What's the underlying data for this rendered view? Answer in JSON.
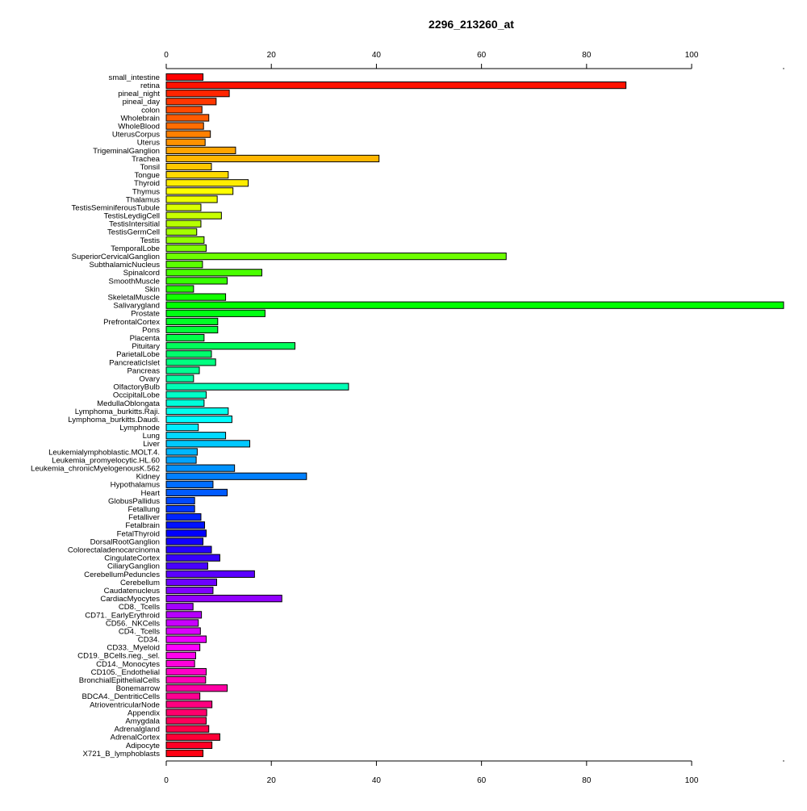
{
  "chart_data": {
    "type": "bar",
    "orientation": "horizontal",
    "title": "2296_213260_at",
    "xlabel": "",
    "ylabel": "",
    "xlim": [
      0,
      117.5
    ],
    "xticks": [
      0,
      20,
      40,
      60,
      80,
      100
    ],
    "grid": false,
    "legend": "none",
    "colormap": "rainbow",
    "categories": [
      "small_intestine",
      "retina",
      "pineal_night",
      "pineal_day",
      "colon",
      "Wholebrain",
      "WholeBlood",
      "UterusCorpus",
      "Uterus",
      "TrigeminalGanglion",
      "Trachea",
      "Tonsil",
      "Tongue",
      "Thyroid",
      "Thymus",
      "Thalamus",
      "TestisSeminiferousTubule",
      "TestisLeydigCell",
      "TestisIntersitial",
      "TestisGermCell",
      "Testis",
      "TemporalLobe",
      "SuperiorCervicalGanglion",
      "SubthalamicNucleus",
      "Spinalcord",
      "SmoothMuscle",
      "Skin",
      "SkeletalMuscle",
      "Salivarygland",
      "Prostate",
      "PrefrontalCortex",
      "Pons",
      "Placenta",
      "Pituitary",
      "ParietalLobe",
      "PancreaticIslet",
      "Pancreas",
      "Ovary",
      "OlfactoryBulb",
      "OccipitalLobe",
      "MedullaOblongata",
      "Lymphoma_burkitts.Raji.",
      "Lymphoma_burkitts.Daudi.",
      "Lymphnode",
      "Lung",
      "Liver",
      "Leukemialymphoblastic.MOLT.4.",
      "Leukemia_promyelocytic.HL.60",
      "Leukemia_chronicMyelogenousK.562",
      "Kidney",
      "Hypothalamus",
      "Heart",
      "GlobusPallidus",
      "Fetallung",
      "Fetalliver",
      "Fetalbrain",
      "FetalThyroid",
      "DorsalRootGanglion",
      "Colorectaladenocarcinoma",
      "CingulateCortex",
      "CiliaryGanglion",
      "CerebellumPeduncles",
      "Cerebellum",
      "Caudatenucleus",
      "CardiacMyocytes",
      "CD8._Tcells",
      "CD71._EarlyErythroid",
      "CD56._NKCells",
      "CD4._Tcells",
      "CD34.",
      "CD33._Myeloid",
      "CD19._BCells.neg._sel.",
      "CD14._Monocytes",
      "CD105._Endothelial",
      "BronchialEpithelialCells",
      "Bonemarrow",
      "BDCA4._DentriticCells",
      "AtrioventricularNode",
      "Appendix",
      "Amygdala",
      "Adrenalgland",
      "AdrenalCortex",
      "Adipocyte",
      "X721_B_lymphoblasts"
    ],
    "values": [
      7.0,
      87.5,
      12.0,
      9.5,
      6.8,
      8.1,
      7.1,
      8.4,
      7.4,
      13.2,
      40.5,
      8.6,
      11.8,
      15.6,
      12.7,
      9.7,
      6.6,
      10.5,
      6.6,
      5.8,
      7.2,
      7.6,
      64.7,
      6.9,
      18.2,
      11.6,
      5.2,
      11.3,
      117.5,
      18.8,
      9.8,
      9.8,
      7.2,
      24.5,
      8.6,
      9.4,
      6.3,
      5.2,
      34.7,
      7.6,
      7.2,
      11.8,
      12.5,
      6.1,
      11.3,
      15.9,
      5.9,
      5.7,
      13.0,
      26.7,
      8.9,
      11.6,
      5.4,
      5.4,
      6.6,
      7.3,
      7.6,
      7.0,
      8.6,
      10.2,
      7.9,
      16.8,
      9.6,
      8.9,
      22.0,
      5.1,
      6.7,
      6.1,
      6.5,
      7.6,
      6.4,
      5.6,
      5.4,
      7.6,
      7.5,
      11.6,
      6.4,
      8.7,
      7.7,
      7.6,
      8.1,
      10.2,
      8.7,
      7.0
    ]
  }
}
